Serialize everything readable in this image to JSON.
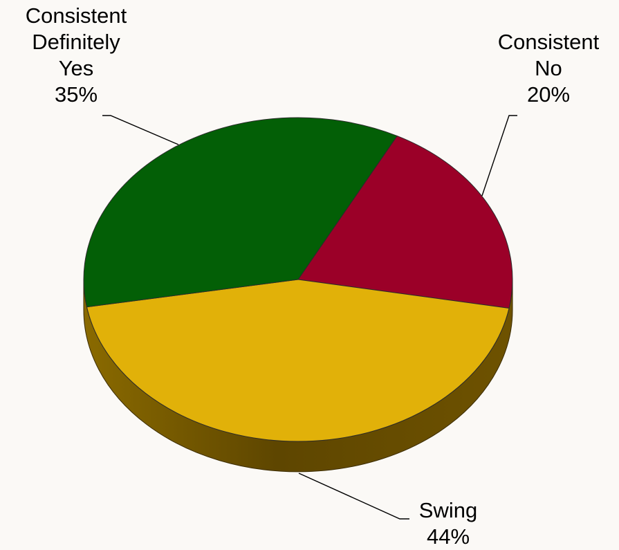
{
  "chart_data": {
    "type": "pie",
    "title": "",
    "slices": [
      {
        "label_lines": [
          "Consistent",
          "Definitely",
          "Yes"
        ],
        "value": 35,
        "value_label": "35%",
        "color": "#035f06"
      },
      {
        "label_lines": [
          "Consistent",
          "No"
        ],
        "value": 20,
        "value_label": "20%",
        "color": "#9b0028"
      },
      {
        "label_lines": [
          "Swing"
        ],
        "value": 44,
        "value_label": "44%",
        "color": "#e1b109"
      }
    ],
    "style": "3d",
    "legend": "none",
    "side_color": "#8a6a00",
    "background": "#fbf9f6"
  }
}
